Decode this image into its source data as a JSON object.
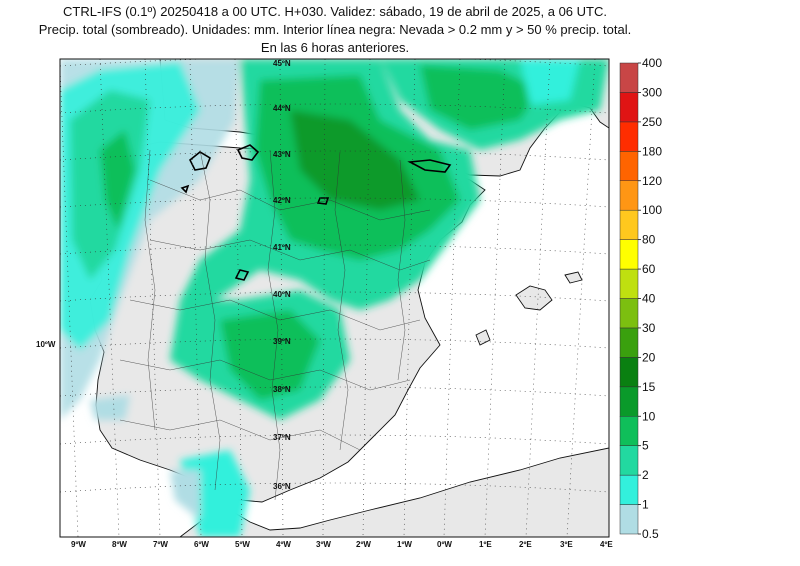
{
  "header": {
    "line1": "CTRL-IFS (0.1º) 20250418 a 00 UTC. H+030. Validez: sábado, 19 de abril de 2025, a 06 UTC.",
    "line2": "Precip. total (sombreado). Unidades: mm. Interior línea negra: Nevada > 0.2 mm y > 50 % precip. total.",
    "line3": "En las 6 horas anteriores."
  },
  "map": {
    "lat_labels": [
      "45ºN",
      "44ºN",
      "43ºN",
      "42ºN",
      "41ºN",
      "40ºN",
      "39ºN",
      "38ºN",
      "37ºN",
      "36ºN"
    ],
    "lon_labels": [
      "9ºW",
      "8ºW",
      "7ºW",
      "6ºW",
      "5ºW",
      "4ºW",
      "3ºW",
      "2ºW",
      "1ºW",
      "0ºW",
      "1ºE",
      "2ºE",
      "3ºE",
      "4ºE"
    ],
    "side_label": "10ºW"
  },
  "colorbar": {
    "levels": [
      "0.5",
      "1",
      "2",
      "5",
      "10",
      "15",
      "20",
      "30",
      "40",
      "60",
      "80",
      "100",
      "120",
      "180",
      "250",
      "300",
      "400"
    ],
    "colors": [
      "#b0dde4",
      "#33f0dc",
      "#22d9a0",
      "#0fbf5a",
      "#0a9a2a",
      "#0a8011",
      "#3aa00e",
      "#7cbf10",
      "#bfe010",
      "#ffff00",
      "#ffc81e",
      "#ff9614",
      "#ff6400",
      "#ff2d00",
      "#e01414",
      "#c84646",
      "#dc8282",
      "#ebbebe"
    ]
  }
}
